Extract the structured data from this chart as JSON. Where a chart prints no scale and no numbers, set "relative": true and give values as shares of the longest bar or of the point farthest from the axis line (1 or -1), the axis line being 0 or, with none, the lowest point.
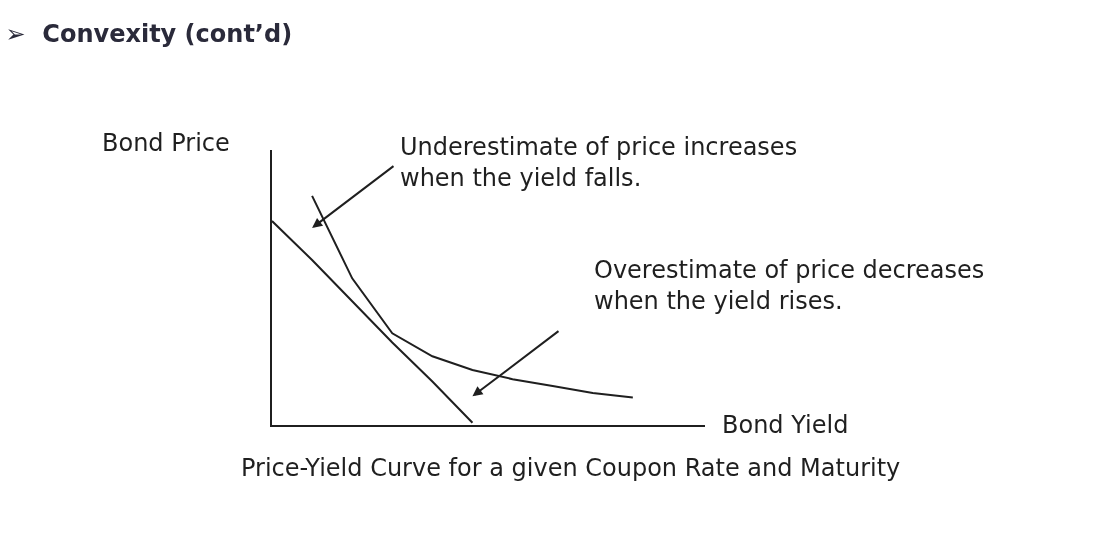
{
  "chart_data": {
    "type": "line",
    "title": "➢  Convexity (cont’d)",
    "xlabel": "Bond Yield",
    "ylabel": "Bond Price",
    "relative": true,
    "marker": "none",
    "line_style": "solid",
    "categories": [
      null,
      null,
      null,
      null,
      null,
      null,
      null,
      null,
      null,
      null
    ],
    "series": [
      {
        "color": "#1f1f1f",
        "values": [
          null,
          1,
          0.64,
          0.4,
          0.3,
          0.24,
          0.2,
          0.17,
          0.14,
          0.12
        ]
      },
      {
        "color": "#1f1f1f",
        "values": [
          0.89,
          0.72,
          0.54,
          0.36,
          0.19,
          0.01,
          null,
          null,
          null,
          null
        ]
      }
    ],
    "annotations": [
      "Underestimate of price increases\nwhen the yield falls.",
      "Overestimate of price decreases\nwhen the yield rises.",
      "Price-Yield Curve for a given Coupon Rate and Maturity"
    ]
  }
}
